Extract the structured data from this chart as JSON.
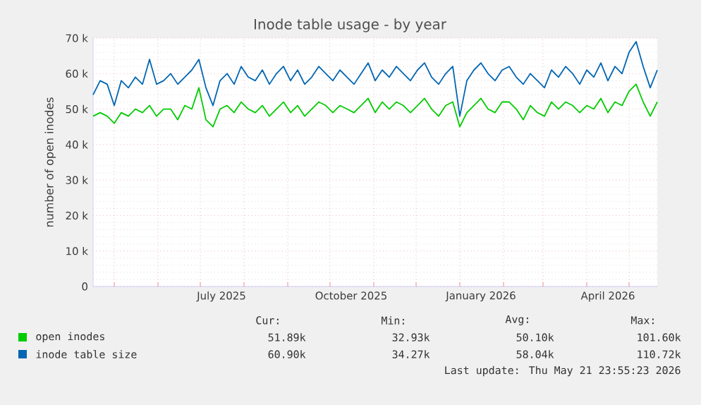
{
  "chart_data": {
    "type": "line",
    "title": "Inode table usage - by year",
    "ylabel": "number of open inodes",
    "x": [
      "2025-04-16",
      "2025-04-21",
      "2025-04-26",
      "2025-05-01",
      "2025-05-06",
      "2025-05-11",
      "2025-05-16",
      "2025-05-21",
      "2025-05-26",
      "2025-05-31",
      "2025-06-05",
      "2025-06-10",
      "2025-06-15",
      "2025-06-20",
      "2025-06-25",
      "2025-06-30",
      "2025-07-05",
      "2025-07-10",
      "2025-07-15",
      "2025-07-20",
      "2025-07-25",
      "2025-07-30",
      "2025-08-04",
      "2025-08-09",
      "2025-08-14",
      "2025-08-19",
      "2025-08-24",
      "2025-08-29",
      "2025-09-03",
      "2025-09-08",
      "2025-09-13",
      "2025-09-18",
      "2025-09-23",
      "2025-09-28",
      "2025-10-03",
      "2025-10-08",
      "2025-10-13",
      "2025-10-18",
      "2025-10-23",
      "2025-10-28",
      "2025-11-02",
      "2025-11-07",
      "2025-11-12",
      "2025-11-17",
      "2025-11-22",
      "2025-11-27",
      "2025-12-02",
      "2025-12-07",
      "2025-12-12",
      "2025-12-17",
      "2025-12-22",
      "2025-12-27",
      "2026-01-01",
      "2026-01-06",
      "2026-01-11",
      "2026-01-16",
      "2026-01-21",
      "2026-01-26",
      "2026-01-31",
      "2026-02-05",
      "2026-02-10",
      "2026-02-15",
      "2026-02-20",
      "2026-02-25",
      "2026-03-02",
      "2026-03-07",
      "2026-03-12",
      "2026-03-17",
      "2026-03-22",
      "2026-03-27",
      "2026-04-01",
      "2026-04-06",
      "2026-04-11",
      "2026-04-16",
      "2026-04-21",
      "2026-04-26",
      "2026-05-01",
      "2026-05-06",
      "2026-05-11",
      "2026-05-16",
      "2026-05-21"
    ],
    "series": [
      {
        "name": "open inodes",
        "color": "#00cc00",
        "values": [
          48000,
          49000,
          48000,
          46000,
          49000,
          48000,
          50000,
          49000,
          51000,
          48000,
          50000,
          50000,
          47000,
          51000,
          50000,
          56000,
          47000,
          45000,
          50000,
          51000,
          49000,
          52000,
          50000,
          49000,
          51000,
          48000,
          50000,
          52000,
          49000,
          51000,
          48000,
          50000,
          52000,
          51000,
          49000,
          51000,
          50000,
          49000,
          51000,
          53000,
          49000,
          52000,
          50000,
          52000,
          51000,
          49000,
          51000,
          53000,
          50000,
          48000,
          51000,
          52000,
          45000,
          49000,
          51000,
          53000,
          50000,
          49000,
          52000,
          52000,
          50000,
          47000,
          51000,
          49000,
          48000,
          52000,
          50000,
          52000,
          51000,
          49000,
          51000,
          50000,
          53000,
          49000,
          52000,
          51000,
          55000,
          57000,
          52000,
          48000,
          52000
        ]
      },
      {
        "name": "inode table size",
        "color": "#0066b3",
        "values": [
          54000,
          58000,
          57000,
          51000,
          58000,
          56000,
          59000,
          57000,
          64000,
          57000,
          58000,
          60000,
          57000,
          59000,
          61000,
          64000,
          56000,
          51000,
          58000,
          60000,
          57000,
          62000,
          59000,
          58000,
          61000,
          57000,
          60000,
          62000,
          58000,
          61000,
          57000,
          59000,
          62000,
          60000,
          58000,
          61000,
          59000,
          57000,
          60000,
          63000,
          58000,
          61000,
          59000,
          62000,
          60000,
          58000,
          61000,
          63000,
          59000,
          57000,
          60000,
          62000,
          48000,
          58000,
          61000,
          63000,
          60000,
          58000,
          61000,
          62000,
          59000,
          57000,
          60000,
          58000,
          56000,
          61000,
          59000,
          62000,
          60000,
          57000,
          61000,
          59000,
          63000,
          58000,
          62000,
          60000,
          66000,
          69000,
          62000,
          56000,
          61000
        ]
      }
    ],
    "xlim": [
      "2025-04-16",
      "2026-05-21"
    ],
    "xticks": [
      {
        "value": "2025-05-01",
        "label": null
      },
      {
        "value": "2025-06-01",
        "label": null
      },
      {
        "value": "2025-07-01",
        "label": null
      },
      {
        "value": "2025-07-16",
        "label": "July 2025"
      },
      {
        "value": "2025-08-01",
        "label": null
      },
      {
        "value": "2025-09-01",
        "label": null
      },
      {
        "value": "2025-10-01",
        "label": null
      },
      {
        "value": "2025-10-16",
        "label": "October 2025"
      },
      {
        "value": "2025-11-01",
        "label": null
      },
      {
        "value": "2025-12-01",
        "label": null
      },
      {
        "value": "2026-01-01",
        "label": null
      },
      {
        "value": "2026-01-16",
        "label": "January 2026"
      },
      {
        "value": "2026-02-01",
        "label": null
      },
      {
        "value": "2026-03-01",
        "label": null
      },
      {
        "value": "2026-04-01",
        "label": null
      },
      {
        "value": "2026-04-16",
        "label": "April 2026"
      },
      {
        "value": "2026-05-01",
        "label": null
      }
    ],
    "ylim": [
      0,
      70000
    ],
    "yticks": [
      0,
      {
        "value": 10000,
        "label": "10 k"
      },
      {
        "value": 20000,
        "label": "20 k"
      },
      {
        "value": 30000,
        "label": "30 k"
      },
      {
        "value": 40000,
        "label": "40 k"
      },
      {
        "value": 50000,
        "label": "50 k"
      },
      {
        "value": 60000,
        "label": "60 k"
      },
      {
        "value": 70000,
        "label": "70 k"
      }
    ],
    "grid": true,
    "legend": "bottom",
    "marker": "none",
    "line_style": "solid",
    "annotations": [
      "Cur:",
      "Min:",
      "Avg:",
      "Max:",
      "51.89k",
      "32.93k",
      "50.10k",
      "101.60k",
      "60.90k",
      "34.27k",
      "58.04k",
      "110.72k",
      "Last update: Thu May 21 23:55:23 2026"
    ]
  }
}
